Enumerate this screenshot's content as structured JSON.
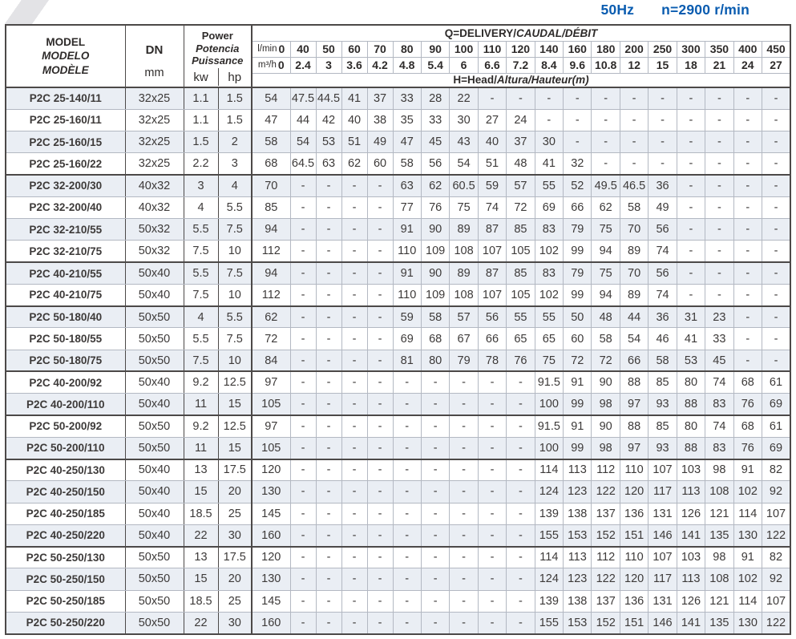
{
  "page": {
    "frequency": "50Hz",
    "speed": "n=2900 r/min"
  },
  "colors": {
    "accent_blue": "#0a5cb0",
    "row_shade": "#eaeef4",
    "border_dark": "#4c4948",
    "border_light": "#b3b8c2"
  },
  "table": {
    "model_header": [
      "MODEL",
      "MODELO",
      "MODÈLE"
    ],
    "dn_label": "DN",
    "dn_unit": "mm",
    "power_header": [
      "Power",
      "Potencia",
      "Puissance"
    ],
    "power_units": [
      "kw",
      "hp"
    ],
    "delivery_header_plain": "Q=DELIVERY/",
    "delivery_header_italic": "CAUDAL/DÉBIT",
    "head_header_plain": "H=Head/",
    "head_header_italic": "Altura/Hauteur(m)",
    "flow_lmin_label": "l/min",
    "flow_m3h_label": "m³/h",
    "flow_lmin": [
      "0",
      "40",
      "50",
      "60",
      "70",
      "80",
      "90",
      "100",
      "110",
      "120",
      "140",
      "160",
      "180",
      "200",
      "250",
      "300",
      "350",
      "400",
      "450"
    ],
    "flow_m3h": [
      "0",
      "2.4",
      "3",
      "3.6",
      "4.2",
      "4.8",
      "5.4",
      "6",
      "6.6",
      "7.2",
      "8.4",
      "9.6",
      "10.8",
      "12",
      "15",
      "18",
      "21",
      "24",
      "27"
    ],
    "rows": [
      {
        "model": "P2C 25-140/11",
        "dn": "32x25",
        "kw": "1.1",
        "hp": "1.5",
        "heads": [
          "54",
          "47.5",
          "44.5",
          "41",
          "37",
          "33",
          "28",
          "22",
          "-",
          "-",
          "-",
          "-",
          "-",
          "-",
          "-",
          "-",
          "-",
          "-",
          "-"
        ]
      },
      {
        "model": "P2C 25-160/11",
        "dn": "32x25",
        "kw": "1.1",
        "hp": "1.5",
        "heads": [
          "47",
          "44",
          "42",
          "40",
          "38",
          "35",
          "33",
          "30",
          "27",
          "24",
          "-",
          "-",
          "-",
          "-",
          "-",
          "-",
          "-",
          "-",
          "-"
        ]
      },
      {
        "model": "P2C 25-160/15",
        "dn": "32x25",
        "kw": "1.5",
        "hp": "2",
        "heads": [
          "58",
          "54",
          "53",
          "51",
          "49",
          "47",
          "45",
          "43",
          "40",
          "37",
          "30",
          "-",
          "-",
          "-",
          "-",
          "-",
          "-",
          "-",
          "-"
        ]
      },
      {
        "model": "P2C 25-160/22",
        "dn": "32x25",
        "kw": "2.2",
        "hp": "3",
        "heads": [
          "68",
          "64.5",
          "63",
          "62",
          "60",
          "58",
          "56",
          "54",
          "51",
          "48",
          "41",
          "32",
          "-",
          "-",
          "-",
          "-",
          "-",
          "-",
          "-"
        ],
        "group_end": true
      },
      {
        "model": "P2C 32-200/30",
        "dn": "40x32",
        "kw": "3",
        "hp": "4",
        "heads": [
          "70",
          "-",
          "-",
          "-",
          "-",
          "63",
          "62",
          "60.5",
          "59",
          "57",
          "55",
          "52",
          "49.5",
          "46.5",
          "36",
          "-",
          "-",
          "-",
          "-"
        ]
      },
      {
        "model": "P2C 32-200/40",
        "dn": "40x32",
        "kw": "4",
        "hp": "5.5",
        "heads": [
          "85",
          "-",
          "-",
          "-",
          "-",
          "77",
          "76",
          "75",
          "74",
          "72",
          "69",
          "66",
          "62",
          "58",
          "49",
          "-",
          "-",
          "-",
          "-"
        ]
      },
      {
        "model": "P2C 32-210/55",
        "dn": "50x32",
        "kw": "5.5",
        "hp": "7.5",
        "heads": [
          "94",
          "-",
          "-",
          "-",
          "-",
          "91",
          "90",
          "89",
          "87",
          "85",
          "83",
          "79",
          "75",
          "70",
          "56",
          "-",
          "-",
          "-",
          "-"
        ]
      },
      {
        "model": "P2C 32-210/75",
        "dn": "50x32",
        "kw": "7.5",
        "hp": "10",
        "heads": [
          "112",
          "-",
          "-",
          "-",
          "-",
          "110",
          "109",
          "108",
          "107",
          "105",
          "102",
          "99",
          "94",
          "89",
          "74",
          "-",
          "-",
          "-",
          "-"
        ],
        "group_end": true
      },
      {
        "model": "P2C 40-210/55",
        "dn": "50x40",
        "kw": "5.5",
        "hp": "7.5",
        "heads": [
          "94",
          "-",
          "-",
          "-",
          "-",
          "91",
          "90",
          "89",
          "87",
          "85",
          "83",
          "79",
          "75",
          "70",
          "56",
          "-",
          "-",
          "-",
          "-"
        ]
      },
      {
        "model": "P2C 40-210/75",
        "dn": "50x40",
        "kw": "7.5",
        "hp": "10",
        "heads": [
          "112",
          "-",
          "-",
          "-",
          "-",
          "110",
          "109",
          "108",
          "107",
          "105",
          "102",
          "99",
          "94",
          "89",
          "74",
          "-",
          "-",
          "-",
          "-"
        ],
        "group_end": true
      },
      {
        "model": "P2C 50-180/40",
        "dn": "50x50",
        "kw": "4",
        "hp": "5.5",
        "heads": [
          "62",
          "-",
          "-",
          "-",
          "-",
          "59",
          "58",
          "57",
          "56",
          "55",
          "55",
          "50",
          "48",
          "44",
          "36",
          "31",
          "23",
          "-",
          "-"
        ]
      },
      {
        "model": "P2C 50-180/55",
        "dn": "50x50",
        "kw": "5.5",
        "hp": "7.5",
        "heads": [
          "72",
          "-",
          "-",
          "-",
          "-",
          "69",
          "68",
          "67",
          "66",
          "65",
          "65",
          "60",
          "58",
          "54",
          "46",
          "41",
          "33",
          "-",
          "-"
        ]
      },
      {
        "model": "P2C 50-180/75",
        "dn": "50x50",
        "kw": "7.5",
        "hp": "10",
        "heads": [
          "84",
          "-",
          "-",
          "-",
          "-",
          "81",
          "80",
          "79",
          "78",
          "76",
          "75",
          "72",
          "72",
          "66",
          "58",
          "53",
          "45",
          "-",
          "-"
        ],
        "group_end": true
      },
      {
        "model": "P2C 40-200/92",
        "dn": "50x40",
        "kw": "9.2",
        "hp": "12.5",
        "heads": [
          "97",
          "-",
          "-",
          "-",
          "-",
          "-",
          "-",
          "-",
          "-",
          "-",
          "91.5",
          "91",
          "90",
          "88",
          "85",
          "80",
          "74",
          "68",
          "61"
        ]
      },
      {
        "model": "P2C 40-200/110",
        "dn": "50x40",
        "kw": "11",
        "hp": "15",
        "heads": [
          "105",
          "-",
          "-",
          "-",
          "-",
          "-",
          "-",
          "-",
          "-",
          "-",
          "100",
          "99",
          "98",
          "97",
          "93",
          "88",
          "83",
          "76",
          "69"
        ],
        "group_end": true
      },
      {
        "model": "P2C 50-200/92",
        "dn": "50x50",
        "kw": "9.2",
        "hp": "12.5",
        "heads": [
          "97",
          "-",
          "-",
          "-",
          "-",
          "-",
          "-",
          "-",
          "-",
          "-",
          "91.5",
          "91",
          "90",
          "88",
          "85",
          "80",
          "74",
          "68",
          "61"
        ]
      },
      {
        "model": "P2C 50-200/110",
        "dn": "50x50",
        "kw": "11",
        "hp": "15",
        "heads": [
          "105",
          "-",
          "-",
          "-",
          "-",
          "-",
          "-",
          "-",
          "-",
          "-",
          "100",
          "99",
          "98",
          "97",
          "93",
          "88",
          "83",
          "76",
          "69"
        ],
        "group_end": true
      },
      {
        "model": "P2C 40-250/130",
        "dn": "50x40",
        "kw": "13",
        "hp": "17.5",
        "heads": [
          "120",
          "-",
          "-",
          "-",
          "-",
          "-",
          "-",
          "-",
          "-",
          "-",
          "114",
          "113",
          "112",
          "110",
          "107",
          "103",
          "98",
          "91",
          "82"
        ]
      },
      {
        "model": "P2C 40-250/150",
        "dn": "50x40",
        "kw": "15",
        "hp": "20",
        "heads": [
          "130",
          "-",
          "-",
          "-",
          "-",
          "-",
          "-",
          "-",
          "-",
          "-",
          "124",
          "123",
          "122",
          "120",
          "117",
          "113",
          "108",
          "102",
          "92"
        ]
      },
      {
        "model": "P2C 40-250/185",
        "dn": "50x40",
        "kw": "18.5",
        "hp": "25",
        "heads": [
          "145",
          "-",
          "-",
          "-",
          "-",
          "-",
          "-",
          "-",
          "-",
          "-",
          "139",
          "138",
          "137",
          "136",
          "131",
          "126",
          "121",
          "114",
          "107"
        ]
      },
      {
        "model": "P2C 40-250/220",
        "dn": "50x40",
        "kw": "22",
        "hp": "30",
        "heads": [
          "160",
          "-",
          "-",
          "-",
          "-",
          "-",
          "-",
          "-",
          "-",
          "-",
          "155",
          "153",
          "152",
          "151",
          "146",
          "141",
          "135",
          "130",
          "122"
        ],
        "group_end": true
      },
      {
        "model": "P2C 50-250/130",
        "dn": "50x50",
        "kw": "13",
        "hp": "17.5",
        "heads": [
          "120",
          "-",
          "-",
          "-",
          "-",
          "-",
          "-",
          "-",
          "-",
          "-",
          "114",
          "113",
          "112",
          "110",
          "107",
          "103",
          "98",
          "91",
          "82"
        ]
      },
      {
        "model": "P2C 50-250/150",
        "dn": "50x50",
        "kw": "15",
        "hp": "20",
        "heads": [
          "130",
          "-",
          "-",
          "-",
          "-",
          "-",
          "-",
          "-",
          "-",
          "-",
          "124",
          "123",
          "122",
          "120",
          "117",
          "113",
          "108",
          "102",
          "92"
        ]
      },
      {
        "model": "P2C 50-250/185",
        "dn": "50x50",
        "kw": "18.5",
        "hp": "25",
        "heads": [
          "145",
          "-",
          "-",
          "-",
          "-",
          "-",
          "-",
          "-",
          "-",
          "-",
          "139",
          "138",
          "137",
          "136",
          "131",
          "126",
          "121",
          "114",
          "107"
        ]
      },
      {
        "model": "P2C 50-250/220",
        "dn": "50x50",
        "kw": "22",
        "hp": "30",
        "heads": [
          "160",
          "-",
          "-",
          "-",
          "-",
          "-",
          "-",
          "-",
          "-",
          "-",
          "155",
          "153",
          "152",
          "151",
          "146",
          "141",
          "135",
          "130",
          "122"
        ]
      }
    ]
  }
}
